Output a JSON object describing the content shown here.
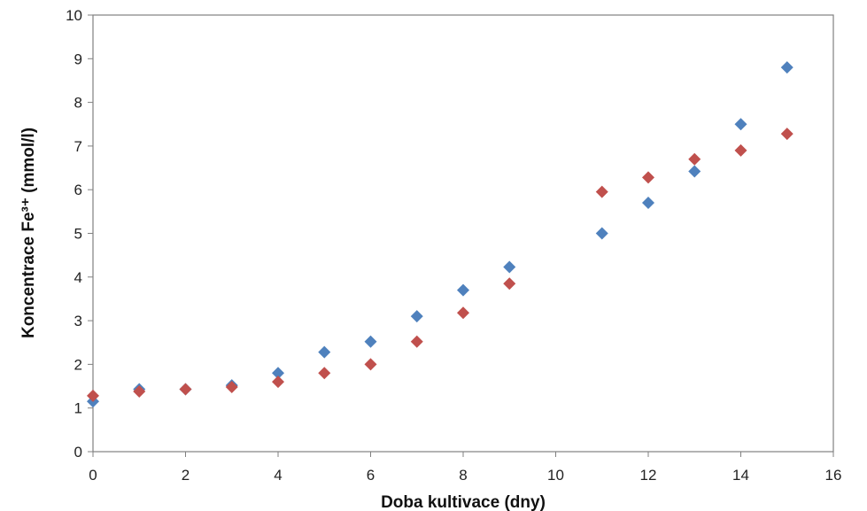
{
  "chart_data": {
    "type": "scatter",
    "title": "",
    "xlabel": "Doba kultivace (dny)",
    "ylabel": "Koncentrace Fe³⁺ (mmol/l)",
    "xlim": [
      0,
      16
    ],
    "ylim": [
      0,
      10
    ],
    "x_ticks": [
      0,
      2,
      4,
      6,
      8,
      10,
      12,
      14,
      16
    ],
    "y_ticks": [
      0,
      1,
      2,
      3,
      4,
      5,
      6,
      7,
      8,
      9,
      10
    ],
    "grid": false,
    "legend": "none",
    "series": [
      {
        "color": "#4f81bd",
        "marker": "diamond",
        "points": [
          [
            0,
            1.15
          ],
          [
            1,
            1.43
          ],
          [
            2,
            1.43
          ],
          [
            3,
            1.52
          ],
          [
            4,
            1.8
          ],
          [
            5,
            2.28
          ],
          [
            6,
            2.52
          ],
          [
            7,
            3.1
          ],
          [
            8,
            3.7
          ],
          [
            9,
            4.23
          ],
          [
            11,
            5.0
          ],
          [
            12,
            5.7
          ],
          [
            13,
            6.42
          ],
          [
            14,
            7.5
          ],
          [
            15,
            8.8
          ]
        ]
      },
      {
        "color": "#c0504d",
        "marker": "diamond",
        "points": [
          [
            0,
            1.28
          ],
          [
            1,
            1.38
          ],
          [
            2,
            1.43
          ],
          [
            3,
            1.48
          ],
          [
            4,
            1.6
          ],
          [
            5,
            1.8
          ],
          [
            6,
            2.0
          ],
          [
            7,
            2.52
          ],
          [
            8,
            3.18
          ],
          [
            9,
            3.85
          ],
          [
            11,
            5.95
          ],
          [
            12,
            6.28
          ],
          [
            13,
            6.7
          ],
          [
            14,
            6.9
          ],
          [
            15,
            7.28
          ]
        ]
      }
    ]
  }
}
